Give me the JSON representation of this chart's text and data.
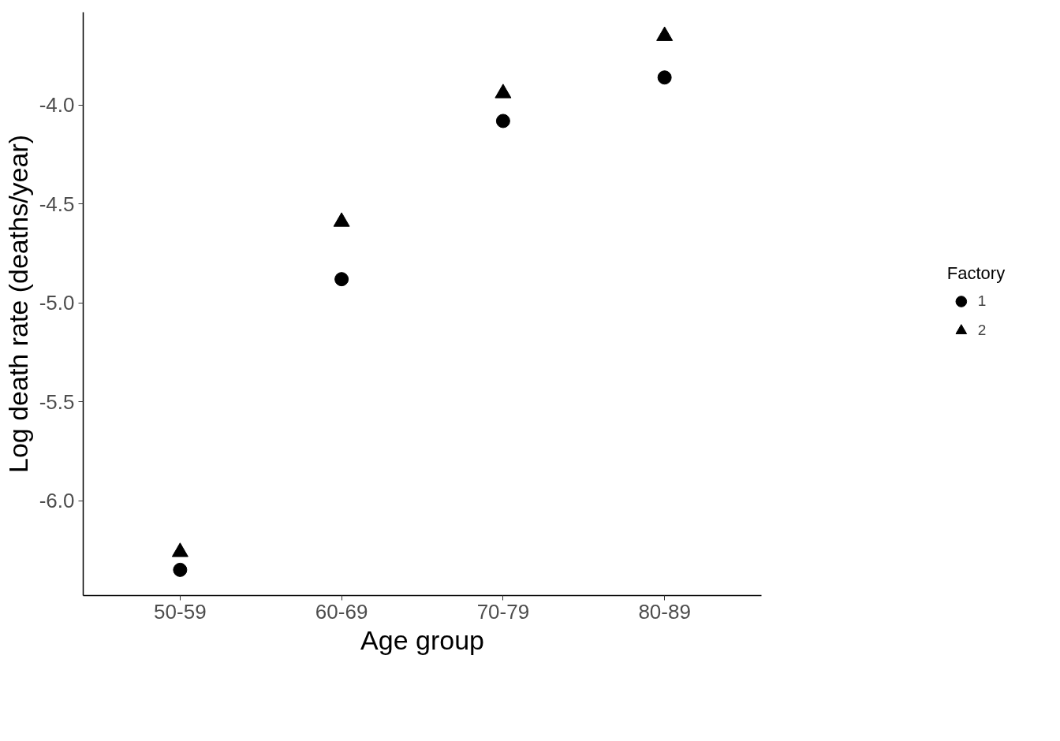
{
  "chart_data": {
    "type": "scatter",
    "xlabel": "Age group",
    "ylabel": "Log death rate (deaths/year)",
    "legend_title": "Factory",
    "categories": [
      "50-59",
      "60-69",
      "70-79",
      "80-89"
    ],
    "series": [
      {
        "name": "1",
        "color": "#000000",
        "marker": "circle",
        "values": [
          -6.35,
          -4.88,
          -4.08,
          -3.86
        ]
      },
      {
        "name": "2",
        "color": "#000000",
        "marker": "triangle",
        "values": [
          -6.26,
          -4.59,
          -3.94,
          -3.65
        ]
      }
    ],
    "ylim": [
      -6.48,
      -3.53
    ],
    "yticks": [
      {
        "value": -6.0,
        "label": "-6.0"
      },
      {
        "value": -5.5,
        "label": "-5.5"
      },
      {
        "value": -5.0,
        "label": "-5.0"
      },
      {
        "value": -4.5,
        "label": "-4.5"
      },
      {
        "value": -4.0,
        "label": "-4.0"
      }
    ],
    "grid": false,
    "legend": "right"
  }
}
